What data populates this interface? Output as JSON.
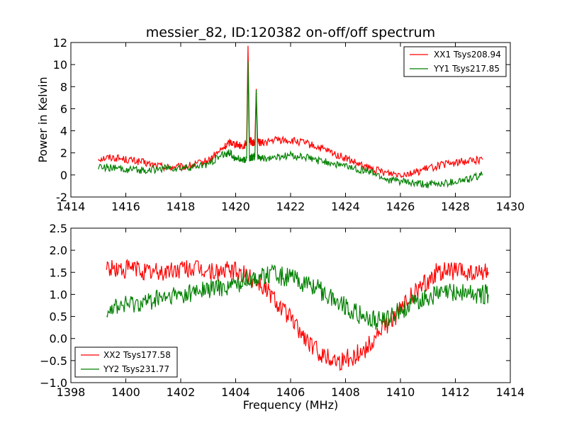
{
  "chart_data": [
    {
      "type": "line",
      "title": "messier_82, ID:120382 on-off/off spectrum",
      "xlabel": "",
      "ylabel": "Power in Kelvin",
      "xlim": [
        1414,
        1430
      ],
      "ylim": [
        -2,
        12
      ],
      "xticks": [
        1414,
        1416,
        1418,
        1420,
        1422,
        1424,
        1426,
        1428,
        1430
      ],
      "yticks": [
        -2,
        0,
        2,
        4,
        6,
        8,
        10,
        12
      ],
      "legend_position": "top-right",
      "grid": false,
      "series": [
        {
          "name": "XX1 Tsys208.94",
          "color": "#ff0000",
          "x": [
            1415.0,
            1415.5,
            1416.0,
            1416.5,
            1417.0,
            1417.5,
            1418.0,
            1418.5,
            1419.0,
            1419.5,
            1419.8,
            1420.0,
            1420.3,
            1420.4,
            1420.45,
            1420.5,
            1420.6,
            1420.7,
            1420.75,
            1420.8,
            1421.0,
            1421.5,
            1422.0,
            1422.5,
            1423.0,
            1423.5,
            1424.0,
            1424.5,
            1425.0,
            1425.5,
            1426.0,
            1426.5,
            1427.0,
            1427.5,
            1428.0,
            1428.5,
            1429.0
          ],
          "y": [
            1.5,
            1.6,
            1.4,
            1.2,
            0.9,
            0.7,
            0.7,
            0.9,
            1.3,
            2.3,
            3.0,
            2.8,
            2.6,
            3.0,
            11.7,
            3.2,
            2.9,
            3.0,
            7.8,
            3.0,
            2.9,
            3.2,
            3.1,
            2.9,
            2.5,
            2.0,
            1.5,
            0.9,
            0.5,
            0.2,
            0.1,
            0.2,
            0.6,
            0.9,
            1.1,
            1.3,
            1.4
          ]
        },
        {
          "name": "YY1 Tsys217.85",
          "color": "#008000",
          "x": [
            1415.0,
            1415.5,
            1416.0,
            1416.5,
            1417.0,
            1417.5,
            1418.0,
            1418.5,
            1419.0,
            1419.5,
            1419.8,
            1420.0,
            1420.3,
            1420.4,
            1420.45,
            1420.5,
            1420.6,
            1420.7,
            1420.75,
            1420.8,
            1421.0,
            1421.5,
            1422.0,
            1422.5,
            1423.0,
            1423.5,
            1424.0,
            1424.5,
            1425.0,
            1425.5,
            1426.0,
            1426.5,
            1427.0,
            1427.5,
            1428.0,
            1428.5,
            1429.0
          ],
          "y": [
            0.8,
            0.6,
            0.5,
            0.4,
            0.5,
            0.6,
            0.6,
            0.7,
            1.0,
            1.8,
            2.0,
            1.5,
            1.3,
            1.5,
            10.3,
            1.5,
            1.6,
            1.6,
            7.7,
            1.6,
            1.5,
            1.6,
            1.8,
            1.6,
            1.3,
            1.1,
            0.8,
            0.5,
            0.2,
            -0.4,
            -0.6,
            -0.8,
            -0.9,
            -0.8,
            -0.6,
            -0.4,
            0.0
          ]
        }
      ]
    },
    {
      "type": "line",
      "title": "",
      "xlabel": "Frequency (MHz)",
      "ylabel": "",
      "xlim": [
        1398,
        1414
      ],
      "ylim": [
        -1.0,
        2.5
      ],
      "xticks": [
        1398,
        1400,
        1402,
        1404,
        1406,
        1408,
        1410,
        1412,
        1414
      ],
      "yticks": [
        -1.0,
        -0.5,
        0.0,
        0.5,
        1.0,
        1.5,
        2.0,
        2.5
      ],
      "ytick_labels": [
        "−1.0",
        "−0.5",
        "0.0",
        "0.5",
        "1.0",
        "1.5",
        "2.0",
        "2.5"
      ],
      "xtick_labels": [
        "1398",
        "1400",
        "1402",
        "1404",
        "1406",
        "1408",
        "1410",
        "1412",
        "1414"
      ],
      "legend_position": "bottom-left",
      "grid": false,
      "series": [
        {
          "name": "XX2 Tsys177.58",
          "color": "#ff0000",
          "x": [
            1399.3,
            1399.8,
            1400.3,
            1400.8,
            1401.3,
            1401.8,
            1402.3,
            1402.8,
            1403.3,
            1403.8,
            1404.3,
            1404.8,
            1405.3,
            1405.8,
            1406.3,
            1406.8,
            1407.3,
            1407.8,
            1408.3,
            1408.8,
            1409.3,
            1409.8,
            1410.3,
            1410.8,
            1411.3,
            1411.8,
            1412.3,
            1412.8,
            1413.2
          ],
          "y": [
            1.6,
            1.55,
            1.6,
            1.5,
            1.5,
            1.55,
            1.6,
            1.55,
            1.5,
            1.55,
            1.45,
            1.3,
            1.0,
            0.6,
            0.2,
            -0.2,
            -0.4,
            -0.5,
            -0.4,
            -0.2,
            0.2,
            0.5,
            0.9,
            1.2,
            1.5,
            1.55,
            1.5,
            1.45,
            1.5
          ]
        },
        {
          "name": "YY2 Tsys231.77",
          "color": "#008000",
          "x": [
            1399.3,
            1399.8,
            1400.3,
            1400.8,
            1401.3,
            1401.8,
            1402.3,
            1402.8,
            1403.3,
            1403.8,
            1404.3,
            1404.8,
            1405.3,
            1405.8,
            1406.3,
            1406.8,
            1407.3,
            1407.8,
            1408.3,
            1408.8,
            1409.3,
            1409.8,
            1410.3,
            1410.8,
            1411.3,
            1411.8,
            1412.3,
            1412.8,
            1413.2
          ],
          "y": [
            0.7,
            0.75,
            0.8,
            0.85,
            0.9,
            0.95,
            1.0,
            1.1,
            1.15,
            1.2,
            1.3,
            1.4,
            1.45,
            1.4,
            1.3,
            1.2,
            1.0,
            0.8,
            0.6,
            0.45,
            0.4,
            0.55,
            0.75,
            0.9,
            1.0,
            1.05,
            1.05,
            1.0,
            1.0
          ]
        }
      ]
    }
  ]
}
